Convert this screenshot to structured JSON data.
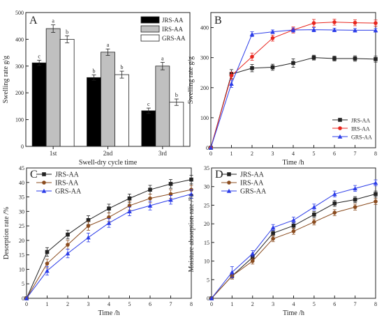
{
  "chart_data": [
    {
      "panel": "A",
      "type": "bar",
      "xlabel": "Swell-dry cycle time",
      "ylabel": "Swelling rate g/g",
      "categories": [
        "1st",
        "2nd",
        "3rd"
      ],
      "ylim": [
        0,
        500
      ],
      "yticks": [
        0,
        100,
        200,
        300,
        400,
        500
      ],
      "legend": "top-right",
      "series": [
        {
          "name": "JRS-AA",
          "color": "#000000",
          "values": [
            312,
            257,
            133
          ],
          "errors": [
            10,
            10,
            10
          ],
          "letters": [
            "c",
            "b",
            "c"
          ]
        },
        {
          "name": "IRS-AA",
          "color": "#c0c0c0",
          "values": [
            440,
            352,
            300
          ],
          "errors": [
            14,
            12,
            14
          ],
          "letters": [
            "a",
            "a",
            "a"
          ]
        },
        {
          "name": "GRS-AA",
          "color": "#ffffff",
          "values": [
            400,
            268,
            165
          ],
          "errors": [
            13,
            13,
            12
          ],
          "letters": [
            "b",
            "b",
            "b"
          ]
        }
      ]
    },
    {
      "panel": "B",
      "type": "line",
      "xlabel": "Time /h",
      "ylabel": "Swelling rate g/g",
      "xlim": [
        0,
        8
      ],
      "ylim": [
        0,
        450
      ],
      "xticks": [
        0,
        1,
        2,
        3,
        4,
        5,
        6,
        7,
        8
      ],
      "yticks": [
        0,
        100,
        200,
        300,
        400
      ],
      "legend": "bottom-right",
      "x": [
        0,
        1,
        2,
        3,
        4,
        5,
        6,
        7,
        8
      ],
      "series": [
        {
          "name": "JRS-AA",
          "color": "#222222",
          "marker": "square",
          "values": [
            0,
            245,
            265,
            268,
            282,
            300,
            297,
            297,
            295
          ],
          "errors": [
            0,
            15,
            12,
            10,
            14,
            8,
            8,
            9,
            10
          ]
        },
        {
          "name": "IRS-AA",
          "color": "#e8261f",
          "marker": "circle",
          "values": [
            0,
            240,
            303,
            365,
            392,
            415,
            418,
            416,
            415
          ],
          "errors": [
            0,
            12,
            12,
            10,
            10,
            12,
            10,
            10,
            10
          ]
        },
        {
          "name": "GRS-AA",
          "color": "#2a3be8",
          "marker": "triangle",
          "values": [
            0,
            213,
            378,
            386,
            392,
            393,
            392,
            391,
            391
          ],
          "errors": [
            0,
            12,
            8,
            6,
            7,
            7,
            6,
            6,
            6
          ]
        }
      ]
    },
    {
      "panel": "C",
      "type": "line",
      "xlabel": "Time /h",
      "ylabel": "Desorption rate /%",
      "xlim": [
        0,
        8
      ],
      "ylim": [
        0,
        45
      ],
      "xticks": [
        0,
        1,
        2,
        3,
        4,
        5,
        6,
        7,
        8
      ],
      "yticks": [
        0,
        5,
        10,
        15,
        20,
        25,
        30,
        35,
        40,
        45
      ],
      "legend": "top-left",
      "x": [
        0,
        1,
        2,
        3,
        4,
        5,
        6,
        7,
        8
      ],
      "series": [
        {
          "name": "JRS-AA",
          "color": "#222222",
          "marker": "square",
          "values": [
            0,
            16,
            22,
            27,
            31,
            34.5,
            37.5,
            39.5,
            41
          ],
          "errors": [
            0,
            1.5,
            1.5,
            1.5,
            1.5,
            1.5,
            1.5,
            1.5,
            1.5
          ]
        },
        {
          "name": "IRS-AA",
          "color": "#8a4b1e",
          "marker": "circle",
          "values": [
            0,
            12,
            18.5,
            25,
            28,
            32,
            34.5,
            36,
            37.5
          ],
          "errors": [
            0,
            1.5,
            1.5,
            1.5,
            1.5,
            1.5,
            1.5,
            1.5,
            1.5
          ]
        },
        {
          "name": "GRS-AA",
          "color": "#2a3be8",
          "marker": "triangle",
          "values": [
            0,
            9.5,
            15.5,
            21,
            26,
            30,
            32,
            34,
            36
          ],
          "errors": [
            0,
            1.5,
            1.5,
            1.5,
            1.5,
            1.5,
            1.5,
            1.5,
            1.5
          ]
        }
      ]
    },
    {
      "panel": "D",
      "type": "line",
      "xlabel": "Time /h",
      "ylabel": "Moisture absorption rate /%",
      "xlim": [
        0,
        8
      ],
      "ylim": [
        0,
        35
      ],
      "xticks": [
        0,
        1,
        2,
        3,
        4,
        5,
        6,
        7,
        8
      ],
      "yticks": [
        0,
        5,
        10,
        15,
        20,
        25,
        30,
        35
      ],
      "legend": "top-left",
      "x": [
        0,
        1,
        2,
        3,
        4,
        5,
        6,
        7,
        8
      ],
      "series": [
        {
          "name": "JRS-AA",
          "color": "#222222",
          "marker": "square",
          "values": [
            0,
            6,
            11,
            17.5,
            19.5,
            22.5,
            25.5,
            26.5,
            28
          ],
          "errors": [
            0,
            0.8,
            0.8,
            0.8,
            0.8,
            0.8,
            0.8,
            0.8,
            0.8
          ]
        },
        {
          "name": "IRS-AA",
          "color": "#8a4b1e",
          "marker": "circle",
          "values": [
            0,
            6,
            10,
            16,
            18,
            20.5,
            23,
            24.5,
            26
          ],
          "errors": [
            0,
            0.8,
            0.8,
            0.8,
            0.8,
            0.8,
            0.8,
            0.8,
            0.8
          ]
        },
        {
          "name": "GRS-AA",
          "color": "#2a3be8",
          "marker": "triangle",
          "values": [
            0,
            7,
            12,
            19,
            21,
            24.5,
            28,
            29.5,
            31
          ],
          "errors": [
            0,
            1.5,
            0.8,
            0.8,
            0.8,
            0.8,
            0.8,
            0.8,
            0.8
          ]
        }
      ]
    }
  ]
}
